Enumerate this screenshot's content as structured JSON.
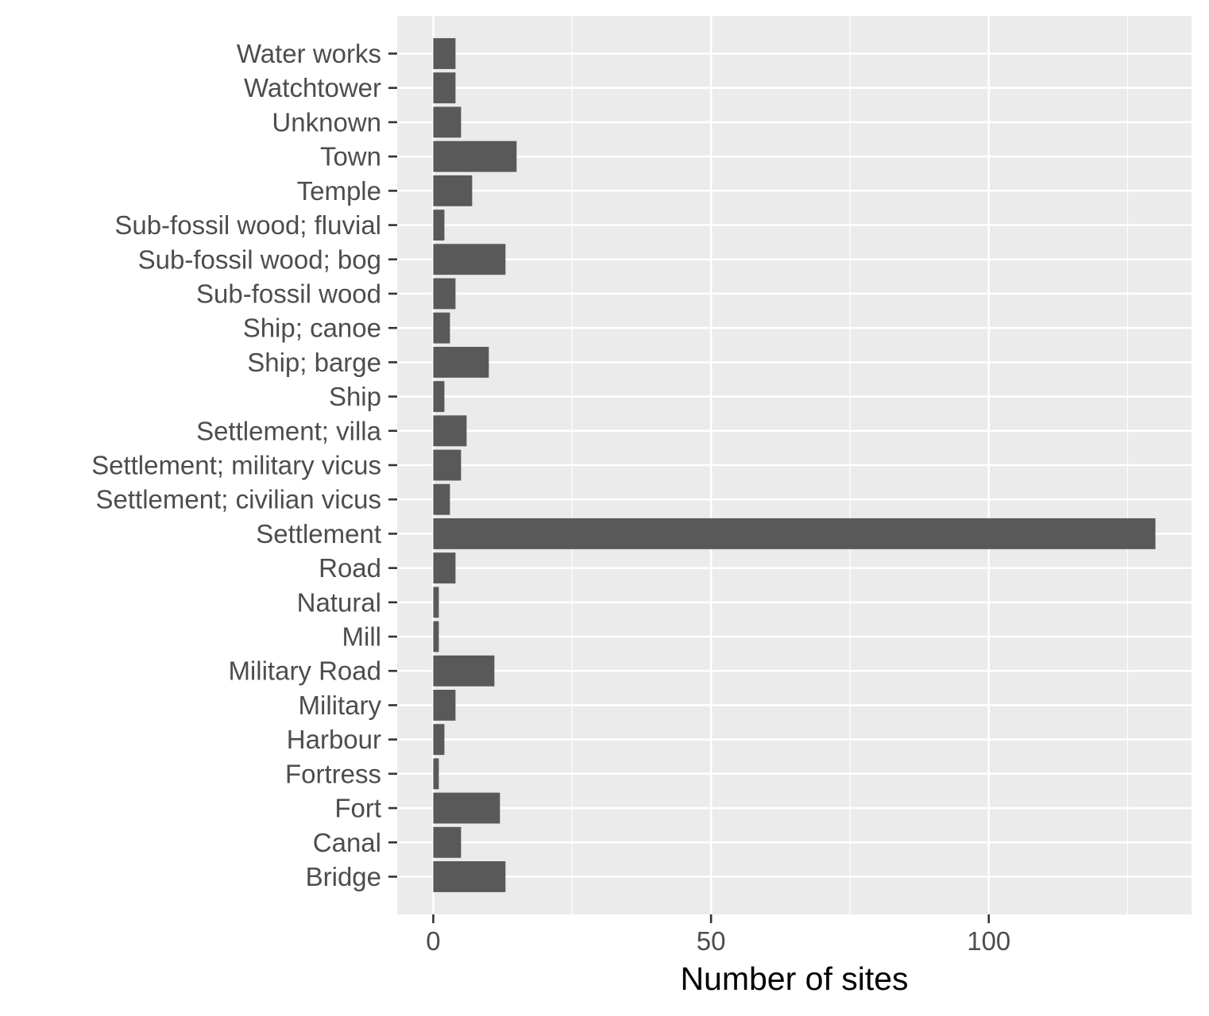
{
  "chart_data": {
    "type": "bar",
    "orientation": "horizontal",
    "categories": [
      "Bridge",
      "Canal",
      "Fort",
      "Fortress",
      "Harbour",
      "Military",
      "Military Road",
      "Mill",
      "Natural",
      "Road",
      "Settlement",
      "Settlement; civilian vicus",
      "Settlement; military vicus",
      "Settlement; villa",
      "Ship",
      "Ship; barge",
      "Ship; canoe",
      "Sub-fossil wood",
      "Sub-fossil wood; bog",
      "Sub-fossil wood; fluvial",
      "Temple",
      "Town",
      "Unknown",
      "Watchtower",
      "Water works"
    ],
    "values": [
      13,
      5,
      12,
      1,
      2,
      4,
      11,
      1,
      1,
      4,
      130,
      3,
      5,
      6,
      2,
      10,
      3,
      4,
      13,
      2,
      7,
      15,
      5,
      4,
      4
    ],
    "xlabel": "Number of sites",
    "ylabel": "",
    "xlim": [
      -6.5,
      136.5
    ],
    "xticks": [
      0,
      50,
      100
    ],
    "xticks_minor": [
      25,
      75,
      125
    ],
    "grid": true,
    "legend": "none",
    "colors": {
      "panel_background": "#ebebeb",
      "grid_major": "#ffffff",
      "grid_minor": "#ffffff",
      "bar_fill": "#595959",
      "tick_text": "#4d4d4d",
      "tick_mark": "#333333",
      "axis_title": "#000000"
    }
  }
}
